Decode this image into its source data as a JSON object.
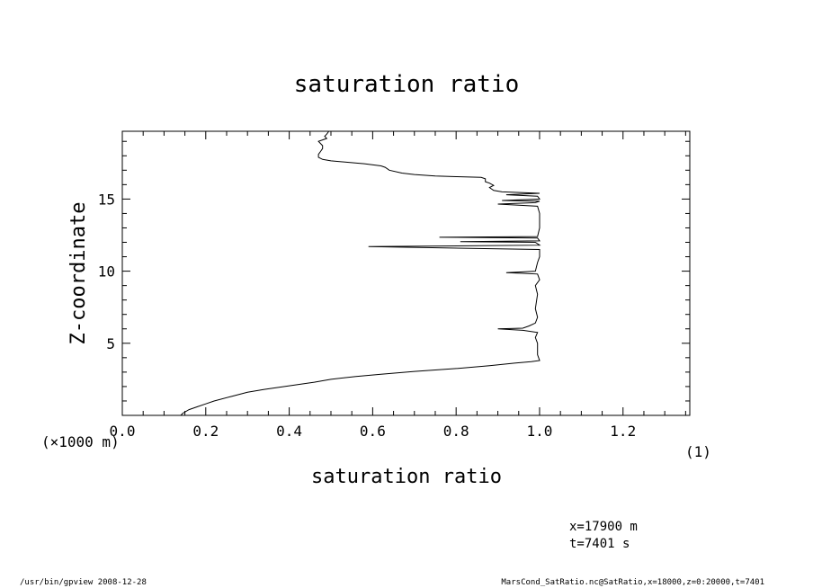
{
  "chart_data": {
    "type": "line",
    "title": "saturation ratio",
    "xlabel": "saturation ratio",
    "ylabel": "Z-coordinate",
    "x_unit_label": "(1)",
    "y_unit_label": "(×1000 m)",
    "xlim": [
      0.0,
      1.36
    ],
    "ylim": [
      0.0,
      19.7
    ],
    "x_ticks": [
      "0.0",
      "0.2",
      "0.4",
      "0.6",
      "0.8",
      "1.0",
      "1.2"
    ],
    "y_ticks": [
      "5",
      "10",
      "15"
    ],
    "grid": false,
    "series": [
      {
        "points": [
          [
            0.14,
            0.0
          ],
          [
            0.145,
            0.15
          ],
          [
            0.16,
            0.4
          ],
          [
            0.18,
            0.6
          ],
          [
            0.2,
            0.8
          ],
          [
            0.22,
            1.0
          ],
          [
            0.26,
            1.3
          ],
          [
            0.3,
            1.6
          ],
          [
            0.34,
            1.8
          ],
          [
            0.4,
            2.05
          ],
          [
            0.46,
            2.3
          ],
          [
            0.5,
            2.5
          ],
          [
            0.56,
            2.7
          ],
          [
            0.62,
            2.85
          ],
          [
            0.7,
            3.05
          ],
          [
            0.8,
            3.25
          ],
          [
            0.88,
            3.45
          ],
          [
            0.94,
            3.62
          ],
          [
            0.98,
            3.72
          ],
          [
            1.0,
            3.8
          ],
          [
            0.995,
            4.2
          ],
          [
            0.995,
            5.0
          ],
          [
            0.99,
            5.4
          ],
          [
            0.995,
            5.75
          ],
          [
            0.96,
            5.9
          ],
          [
            0.9,
            6.0
          ],
          [
            0.96,
            6.05
          ],
          [
            0.975,
            6.2
          ],
          [
            0.99,
            6.4
          ],
          [
            0.995,
            6.8
          ],
          [
            0.99,
            7.4
          ],
          [
            0.995,
            8.4
          ],
          [
            0.99,
            9.0
          ],
          [
            1.0,
            9.4
          ],
          [
            0.995,
            9.8
          ],
          [
            0.96,
            9.85
          ],
          [
            0.92,
            9.9
          ],
          [
            0.96,
            9.95
          ],
          [
            0.99,
            10.0
          ],
          [
            0.995,
            10.6
          ],
          [
            1.0,
            11.0
          ],
          [
            1.0,
            11.5
          ],
          [
            0.59,
            11.7
          ],
          [
            1.0,
            11.8
          ],
          [
            0.99,
            12.0
          ],
          [
            0.81,
            12.05
          ],
          [
            1.0,
            12.1
          ],
          [
            0.995,
            12.3
          ],
          [
            0.76,
            12.35
          ],
          [
            0.995,
            12.4
          ],
          [
            1.0,
            13.0
          ],
          [
            1.0,
            14.0
          ],
          [
            0.995,
            14.5
          ],
          [
            0.9,
            14.65
          ],
          [
            0.99,
            14.75
          ],
          [
            1.0,
            14.85
          ],
          [
            0.91,
            14.9
          ],
          [
            1.0,
            15.0
          ],
          [
            0.995,
            15.2
          ],
          [
            0.92,
            15.3
          ],
          [
            1.0,
            15.4
          ],
          [
            0.96,
            15.45
          ],
          [
            0.91,
            15.5
          ],
          [
            0.89,
            15.6
          ],
          [
            0.88,
            15.8
          ],
          [
            0.89,
            15.95
          ],
          [
            0.88,
            16.1
          ],
          [
            0.87,
            16.2
          ],
          [
            0.87,
            16.4
          ],
          [
            0.86,
            16.5
          ],
          [
            0.8,
            16.55
          ],
          [
            0.75,
            16.6
          ],
          [
            0.7,
            16.7
          ],
          [
            0.67,
            16.8
          ],
          [
            0.64,
            17.0
          ],
          [
            0.63,
            17.2
          ],
          [
            0.62,
            17.3
          ],
          [
            0.58,
            17.45
          ],
          [
            0.54,
            17.55
          ],
          [
            0.5,
            17.65
          ],
          [
            0.48,
            17.75
          ],
          [
            0.47,
            17.9
          ],
          [
            0.47,
            18.1
          ],
          [
            0.475,
            18.3
          ],
          [
            0.48,
            18.5
          ],
          [
            0.48,
            18.7
          ],
          [
            0.475,
            18.85
          ],
          [
            0.47,
            19.0
          ],
          [
            0.48,
            19.1
          ],
          [
            0.49,
            19.2
          ],
          [
            0.485,
            19.35
          ],
          [
            0.49,
            19.5
          ],
          [
            0.495,
            19.7
          ]
        ]
      }
    ]
  },
  "annotations": {
    "position_x": "x=17900 m",
    "time": "t=7401 s"
  },
  "footer": {
    "left": "/usr/bin/gpview  2008-12-28",
    "right": "MarsCond_SatRatio.nc@SatRatio,x=18000,z=0:20000,t=7401"
  }
}
